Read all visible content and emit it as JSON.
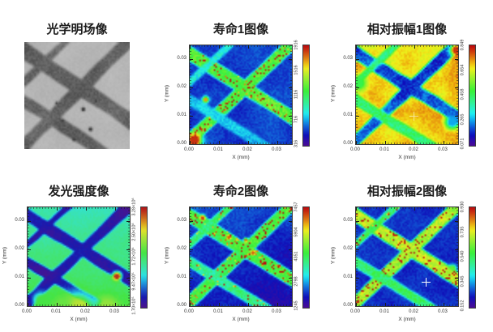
{
  "page": {
    "background": "#ffffff",
    "figure_type": "microscopy measurement montage, 2 rows x 3 columns"
  },
  "chart_data": [
    {
      "type": "image",
      "title": "光学明场像",
      "colormap": "gray",
      "render": {
        "seed": 7,
        "base": 0.7,
        "noiseCoarse": 0.05,
        "noiseFine": 0.035,
        "stripes": [
          {
            "x1": -0.08,
            "y1": 0.03,
            "x2": 1.08,
            "y2": 0.78,
            "w": 0.14,
            "v": 0.3
          },
          {
            "x1": -0.04,
            "y1": 1.0,
            "x2": 1.06,
            "y2": -0.08,
            "w": 0.12,
            "v": 0.3
          },
          {
            "x1": -0.06,
            "y1": 0.52,
            "x2": 0.85,
            "y2": 1.1,
            "w": 0.11,
            "v": 0.3
          },
          {
            "x1": -0.06,
            "y1": 0.42,
            "x2": 0.46,
            "y2": -0.08,
            "w": 0.075,
            "v": 0.32
          }
        ],
        "blobs": [
          {
            "x": 0.56,
            "y": 0.63,
            "r": 0.012,
            "v": 0.08
          },
          {
            "x": 0.36,
            "y": 0.74,
            "r": 0.01,
            "v": 0.12
          },
          {
            "x": 0.63,
            "y": 0.82,
            "r": 0.012,
            "v": 0.08
          },
          {
            "x": 0.47,
            "y": 0.92,
            "r": 0.009,
            "v": 0.1
          },
          {
            "x": 0.3,
            "y": 0.57,
            "r": 0.008,
            "v": 0.15
          },
          {
            "x": 0.68,
            "y": 0.55,
            "r": 0.008,
            "v": 0.1
          }
        ]
      }
    },
    {
      "type": "heatmap",
      "title": "寿命1图像",
      "xlabel": "X (mm)",
      "ylabel": "Y (mm)",
      "xticks": [
        "0.00",
        "0.01",
        "0.02",
        "0.03"
      ],
      "yticks": [
        "0.00",
        "0.01",
        "0.02",
        "0.03"
      ],
      "xlim": [
        0,
        0.035
      ],
      "ylim": [
        0,
        0.035
      ],
      "colorbar_ticks": [
        "316",
        "716",
        "1116",
        "1516",
        "1916"
      ],
      "colormap": "rainbow",
      "render": {
        "seed": 11,
        "base": 0.15,
        "noiseCoarse": 0.07,
        "noiseFine": 0.06,
        "sat": 85,
        "stripes": [
          {
            "x1": -0.08,
            "y1": 0.03,
            "x2": 1.08,
            "y2": 0.78,
            "w": 0.13,
            "v": 0.58,
            "speckle": 0.1
          },
          {
            "x1": -0.04,
            "y1": 1.0,
            "x2": 1.06,
            "y2": -0.08,
            "w": 0.115,
            "v": 0.58,
            "speckle": 0.14
          },
          {
            "x1": -0.06,
            "y1": 0.52,
            "x2": 0.85,
            "y2": 1.1,
            "w": 0.1,
            "v": 0.3,
            "jit": 0.08
          },
          {
            "x1": -0.06,
            "y1": 0.42,
            "x2": 0.46,
            "y2": -0.08,
            "w": 0.07,
            "v": 0.34
          }
        ],
        "blobs": [
          {
            "x": 0.04,
            "y": 0.97,
            "r": 0.045,
            "v": 0.96
          },
          {
            "x": 0.15,
            "y": 0.55,
            "r": 0.02,
            "v": 0.85
          }
        ]
      }
    },
    {
      "type": "heatmap",
      "title": "相对振幅1图像",
      "xlabel": "X (mm)",
      "ylabel": "Y (mm)",
      "xticks": [
        "0.00",
        "0.01",
        "0.02",
        "0.03"
      ],
      "yticks": [
        "0.00",
        "0.01",
        "0.02",
        "0.03"
      ],
      "xlim": [
        0,
        0.035
      ],
      "ylim": [
        0,
        0.035
      ],
      "colorbar_ticks": [
        "0.071",
        "0.265",
        "0.458",
        "0.654",
        "0.849"
      ],
      "colormap": "rainbow",
      "marker": {
        "x": 0.57,
        "y": 0.72,
        "opacity": 0.55
      },
      "render": {
        "seed": 23,
        "base": 0.8,
        "noiseCoarse": 0.13,
        "noiseFine": 0.06,
        "sat": 88,
        "stripes": [
          {
            "x1": -0.08,
            "y1": 0.03,
            "x2": 1.08,
            "y2": 0.78,
            "w": 0.13,
            "v": 0.16,
            "jit": 0.1
          },
          {
            "x1": -0.04,
            "y1": 1.0,
            "x2": 1.06,
            "y2": -0.08,
            "w": 0.115,
            "v": 0.16,
            "jit": 0.1
          },
          {
            "x1": -0.06,
            "y1": 0.52,
            "x2": 0.85,
            "y2": 1.1,
            "w": 0.1,
            "v": 0.48
          },
          {
            "x1": -0.06,
            "y1": 0.42,
            "x2": 0.46,
            "y2": -0.08,
            "w": 0.07,
            "v": 0.46
          }
        ],
        "blobs": [
          {
            "x": 0.99,
            "y": 0.04,
            "r": 0.04,
            "v": 0.95
          },
          {
            "x": 0.95,
            "y": 0.78,
            "r": 0.045,
            "v": 0.25
          },
          {
            "x": 0.02,
            "y": 0.38,
            "r": 0.05,
            "v": 0.52
          }
        ]
      }
    },
    {
      "type": "heatmap",
      "title": "发光强度像",
      "xlabel": "X (mm)",
      "ylabel": "Y (mm)",
      "xticks": [
        "0.00",
        "0.01",
        "0.02",
        "0.03"
      ],
      "yticks": [
        "0.00",
        "0.01",
        "0.02",
        "0.03"
      ],
      "xlim": [
        0,
        0.035
      ],
      "ylim": [
        0,
        0.035
      ],
      "colorbar_ticks": [
        "1.70×10⁵",
        "9.47×10⁵",
        "1.72×10⁶",
        "2.50×10⁶",
        "3.28×10⁶"
      ],
      "colormap": "rainbow",
      "render": {
        "seed": 31,
        "base": 0.38,
        "gy": 0.16,
        "noiseCoarse": 0.05,
        "noiseFine": 0.035,
        "sat": 75,
        "stripes": [
          {
            "x1": -0.08,
            "y1": 0.03,
            "x2": 1.08,
            "y2": 0.78,
            "w": 0.13,
            "v": 0.05,
            "jit": 0.04
          },
          {
            "x1": -0.04,
            "y1": 1.0,
            "x2": 1.06,
            "y2": -0.08,
            "w": 0.115,
            "v": 0.05,
            "jit": 0.04
          },
          {
            "x1": -0.06,
            "y1": 0.52,
            "x2": 0.85,
            "y2": 1.1,
            "w": 0.1,
            "v": 0.05,
            "jit": 0.04
          },
          {
            "x1": -0.06,
            "y1": 0.42,
            "x2": 0.46,
            "y2": -0.08,
            "w": 0.07,
            "v": 0.05,
            "jit": 0.04
          }
        ],
        "blobs": [
          {
            "x": 0.88,
            "y": 0.7,
            "r": 0.028,
            "v": 0.97
          },
          {
            "x": 0.5,
            "y": 1.04,
            "r": 0.1,
            "v": 0.72
          },
          {
            "x": 0.78,
            "y": 1.02,
            "r": 0.08,
            "v": 0.66
          },
          {
            "x": 0.13,
            "y": 0.95,
            "r": 0.05,
            "v": 0.55
          },
          {
            "x": 0.33,
            "y": 1.0,
            "r": 0.06,
            "v": 0.6
          }
        ]
      }
    },
    {
      "type": "heatmap",
      "title": "寿命2图像",
      "xlabel": "X (mm)",
      "ylabel": "Y (mm)",
      "xticks": [
        "0.00",
        "0.01",
        "0.02",
        "0.03"
      ],
      "yticks": [
        "0.00",
        "0.01",
        "0.02",
        "0.03"
      ],
      "xlim": [
        0,
        0.035
      ],
      "ylim": [
        0,
        0.035
      ],
      "colorbar_ticks": [
        "1245",
        "2798",
        "4351",
        "5904",
        "7457"
      ],
      "colormap": "rainbow",
      "render": {
        "seed": 41,
        "base": 0.17,
        "gx": -0.03,
        "gy": -0.06,
        "noiseCoarse": 0.07,
        "noiseFine": 0.06,
        "sat": 85,
        "stripes": [
          {
            "x1": -0.08,
            "y1": 0.03,
            "x2": 1.08,
            "y2": 0.78,
            "w": 0.13,
            "v": 0.56,
            "speckle": 0.15
          },
          {
            "x1": -0.04,
            "y1": 1.0,
            "x2": 1.06,
            "y2": -0.08,
            "w": 0.115,
            "v": 0.56,
            "speckle": 0.15
          },
          {
            "x1": -0.06,
            "y1": 0.52,
            "x2": 0.85,
            "y2": 1.1,
            "w": 0.1,
            "v": 0.46,
            "speckle": 0.06
          },
          {
            "x1": -0.06,
            "y1": 0.42,
            "x2": 0.46,
            "y2": -0.08,
            "w": 0.07,
            "v": 0.5,
            "speckle": 0.1
          }
        ],
        "blobs": [
          {
            "x": 0.12,
            "y": 0.1,
            "r": 0.018,
            "v": 0.95
          },
          {
            "x": 0.38,
            "y": 0.3,
            "r": 0.016,
            "v": 0.92
          },
          {
            "x": 0.55,
            "y": 0.33,
            "r": 0.014,
            "v": 0.9
          },
          {
            "x": 0.62,
            "y": 0.46,
            "r": 0.016,
            "v": 0.93
          }
        ]
      }
    },
    {
      "type": "heatmap",
      "title": "相对振幅2图像",
      "xlabel": "X (mm)",
      "ylabel": "Y (mm)",
      "xticks": [
        "0.00",
        "0.01",
        "0.02",
        "0.03"
      ],
      "yticks": [
        "0.00",
        "0.01",
        "0.02",
        "0.03"
      ],
      "xlim": [
        0,
        0.035
      ],
      "ylim": [
        0,
        0.035
      ],
      "colorbar_ticks": [
        "0.152",
        "0.345",
        "0.540",
        "0.735",
        "0.930"
      ],
      "colormap": "rainbow",
      "marker": {
        "x": 0.69,
        "y": 0.76,
        "opacity": 1
      },
      "render": {
        "seed": 53,
        "base": 0.13,
        "noiseCoarse": 0.05,
        "noiseFine": 0.055,
        "sat": 85,
        "stripes": [
          {
            "x1": -0.08,
            "y1": 0.03,
            "x2": 1.08,
            "y2": 0.78,
            "w": 0.13,
            "v": 0.72,
            "speckle": 0.12
          },
          {
            "x1": -0.04,
            "y1": 1.0,
            "x2": 1.06,
            "y2": -0.08,
            "w": 0.115,
            "v": 0.7,
            "speckle": 0.12
          },
          {
            "x1": -0.06,
            "y1": 0.52,
            "x2": 0.85,
            "y2": 1.1,
            "w": 0.1,
            "v": 0.48
          },
          {
            "x1": -0.06,
            "y1": 0.42,
            "x2": 0.46,
            "y2": -0.08,
            "w": 0.07,
            "v": 0.5,
            "speckle": 0.08
          }
        ],
        "blobs": [
          {
            "x": 0.95,
            "y": 0.62,
            "r": 0.025,
            "v": 0.6
          }
        ]
      }
    }
  ]
}
